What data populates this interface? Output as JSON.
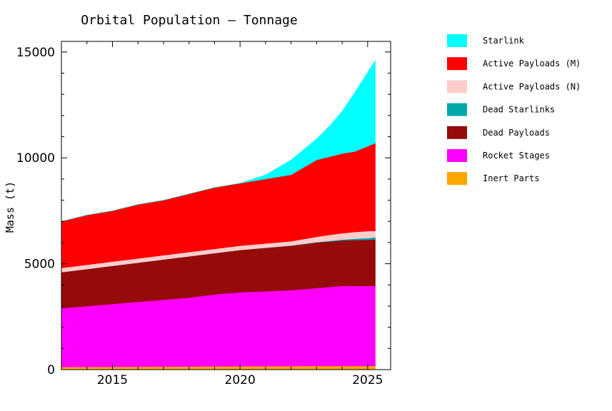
{
  "chart_data": {
    "type": "area",
    "stacked": true,
    "title": "Orbital Population – Tonnage",
    "xlabel": "",
    "ylabel": "Mass (t)",
    "xlim": [
      2013.0,
      2025.9
    ],
    "ylim": [
      0,
      15500
    ],
    "x_ticks": [
      2015,
      2020,
      2025
    ],
    "y_ticks": [
      0,
      5000,
      10000,
      15000
    ],
    "x": [
      2013.0,
      2014.0,
      2015.0,
      2016.0,
      2017.0,
      2018.0,
      2019.0,
      2020.0,
      2021.0,
      2022.0,
      2023.0,
      2023.5,
      2024.0,
      2024.5,
      2025.0,
      2025.3
    ],
    "legend": {
      "position": "outside-right"
    },
    "series": [
      {
        "name": "Inert Parts",
        "color": "#ffa500",
        "values": [
          120,
          125,
          130,
          135,
          140,
          145,
          150,
          155,
          160,
          165,
          170,
          170,
          170,
          170,
          170,
          170
        ]
      },
      {
        "name": "Rocket Stages",
        "color": "#ff00ff",
        "values": [
          2780,
          2875,
          2970,
          3065,
          3160,
          3255,
          3400,
          3495,
          3540,
          3585,
          3680,
          3730,
          3780,
          3780,
          3780,
          3780
        ]
      },
      {
        "name": "Dead Payloads",
        "color": "#960a0a",
        "values": [
          1700,
          1750,
          1800,
          1850,
          1900,
          1950,
          1950,
          2000,
          2050,
          2100,
          2150,
          2150,
          2150,
          2170,
          2180,
          2200
        ]
      },
      {
        "name": "Dead Starlinks",
        "color": "#00a8a8",
        "values": [
          0,
          0,
          0,
          0,
          0,
          0,
          0,
          0,
          5,
          10,
          20,
          30,
          40,
          60,
          80,
          100
        ]
      },
      {
        "name": "Active Payloads (N)",
        "color": "#ffcccc",
        "values": [
          200,
          200,
          200,
          200,
          200,
          200,
          200,
          200,
          200,
          200,
          250,
          280,
          300,
          320,
          330,
          300
        ]
      },
      {
        "name": "Active Payloads (M)",
        "color": "#ff0000",
        "values": [
          2200,
          2350,
          2400,
          2550,
          2600,
          2750,
          2900,
          2950,
          3045,
          3140,
          3630,
          3690,
          3760,
          3800,
          4000,
          4150
        ]
      },
      {
        "name": "Starlink",
        "color": "#00ffff",
        "values": [
          0,
          0,
          0,
          0,
          0,
          0,
          0,
          0,
          200,
          700,
          1000,
          1450,
          2000,
          2800,
          3500,
          3900
        ]
      }
    ]
  }
}
